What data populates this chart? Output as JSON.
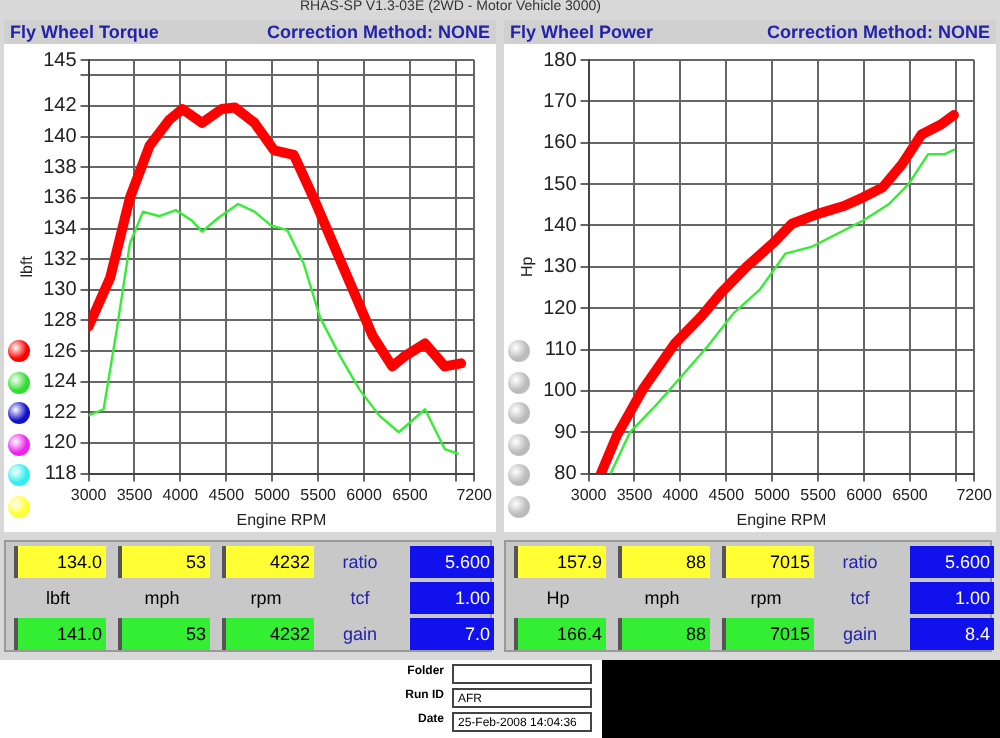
{
  "chart_data": [
    {
      "type": "line",
      "title": "Fly Wheel Torque",
      "subtitle": "Correction Method: NONE",
      "xlabel": "Engine RPM",
      "ylabel": "lbft",
      "xlim": [
        3000,
        7200
      ],
      "xticks": [
        3000,
        3500,
        4000,
        4500,
        5000,
        5500,
        6000,
        6500,
        {
          "value": 7000,
          "label": null
        },
        7200
      ],
      "ylim": [
        118,
        145
      ],
      "yticks": [
        118,
        120,
        122,
        124,
        126,
        128,
        130,
        132,
        134,
        136,
        138,
        140,
        142,
        {
          "value": 144,
          "label": null
        },
        145
      ],
      "grid": true,
      "legend": false,
      "marker": "none",
      "line_style": "solid",
      "series": [
        {
          "color": "#ff0000",
          "x": [
            3000,
            3236,
            3450,
            3664,
            3879,
            4021,
            4236,
            4450,
            4593,
            4807,
            5021,
            5236,
            5450,
            5664,
            5879,
            6093,
            6307,
            6450,
            6664,
            6879,
            7057
          ],
          "values": [
            127.6,
            130.8,
            136.0,
            139.4,
            141.1,
            141.8,
            140.9,
            141.8,
            141.9,
            140.9,
            139.1,
            138.8,
            136.0,
            133.0,
            130.0,
            127.0,
            125.0,
            125.7,
            126.5,
            125.0,
            125.2
          ]
        },
        {
          "color": "#33ee33",
          "x": [
            3000,
            3164,
            3307,
            3450,
            3593,
            3771,
            3950,
            4129,
            4236,
            4414,
            4629,
            4807,
            4986,
            5164,
            5343,
            5521,
            5736,
            5950,
            6164,
            6379,
            6664,
            6879,
            7021
          ],
          "values": [
            121.8,
            122.2,
            127.4,
            133.0,
            135.1,
            134.8,
            135.2,
            134.5,
            133.8,
            134.7,
            135.6,
            135.1,
            134.2,
            133.9,
            131.7,
            128.2,
            125.7,
            123.5,
            121.8,
            120.7,
            122.2,
            119.6,
            119.3
          ]
        }
      ],
      "annotations": [
        "134.0",
        "53",
        "4232",
        "ratio",
        "5.600",
        "lbft",
        "mph",
        "rpm",
        "tcf",
        "1.00",
        "141.0",
        "53",
        "4232",
        "gain",
        "7.0",
        "RHAS-SP V1.3-03E (2WD - Motor Vehicle 3000)"
      ]
    },
    {
      "type": "line",
      "title": "Fly Wheel Power",
      "subtitle": "Correction Method: NONE",
      "xlabel": "Engine RPM",
      "ylabel": "Hp",
      "xlim": [
        3000,
        7200
      ],
      "xticks": [
        3000,
        3500,
        4000,
        4500,
        5000,
        5500,
        6000,
        6500,
        {
          "value": 7000,
          "label": null
        },
        7200
      ],
      "ylim": [
        80,
        180
      ],
      "yticks": [
        80,
        90,
        100,
        110,
        120,
        130,
        140,
        150,
        160,
        170,
        180
      ],
      "grid": true,
      "legend": false,
      "marker": "none",
      "line_style": "solid",
      "series": [
        {
          "color": "#ff0000",
          "x": [
            3134,
            3310,
            3592,
            3945,
            4227,
            4439,
            4721,
            5003,
            5215,
            5497,
            5780,
            5991,
            6203,
            6414,
            6626,
            6838,
            6979
          ],
          "values": [
            80,
            89.3,
            100.4,
            111.6,
            118,
            123.6,
            130,
            135.6,
            140.4,
            142.8,
            144.7,
            146.8,
            149.2,
            154.8,
            162,
            164.4,
            166.7
          ]
        },
        {
          "color": "#33ee33",
          "x": [
            3240,
            3451,
            3733,
            4015,
            4297,
            4580,
            4862,
            5144,
            5426,
            5709,
            5991,
            6273,
            6485,
            6697,
            6873,
            6979
          ],
          "values": [
            80,
            90,
            96.5,
            103.6,
            110.8,
            118.8,
            124.4,
            133.2,
            134.8,
            138,
            141.2,
            145.2,
            150,
            157.2,
            157.2,
            158.3
          ]
        }
      ],
      "annotations": [
        "157.9",
        "88",
        "7015",
        "ratio",
        "5.600",
        "Hp",
        "mph",
        "rpm",
        "tcf",
        "1.00",
        "166.4",
        "88",
        "7015",
        "gain",
        "8.4",
        "Folder",
        "Run ID",
        "AFR",
        "Date",
        "25-Feb-2008 14:04:36"
      ]
    }
  ]
}
